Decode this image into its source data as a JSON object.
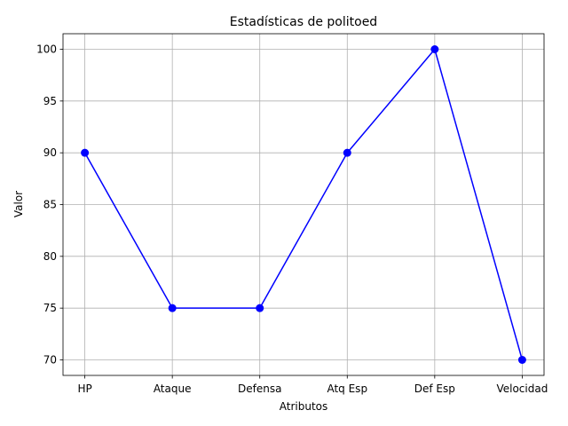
{
  "chart_data": {
    "type": "line",
    "title": "Estadísticas de politoed",
    "xlabel": "Atributos",
    "ylabel": "Valor",
    "categories": [
      "HP",
      "Ataque",
      "Defensa",
      "Atq Esp",
      "Def Esp",
      "Velocidad"
    ],
    "series": [
      {
        "values": [
          90,
          75,
          75,
          90,
          100,
          70
        ],
        "color": "#0000ff",
        "marker": "circle"
      }
    ],
    "yticks": [
      70,
      75,
      80,
      85,
      90,
      95,
      100
    ],
    "ylim": [
      68.5,
      101.5
    ],
    "grid": true
  }
}
